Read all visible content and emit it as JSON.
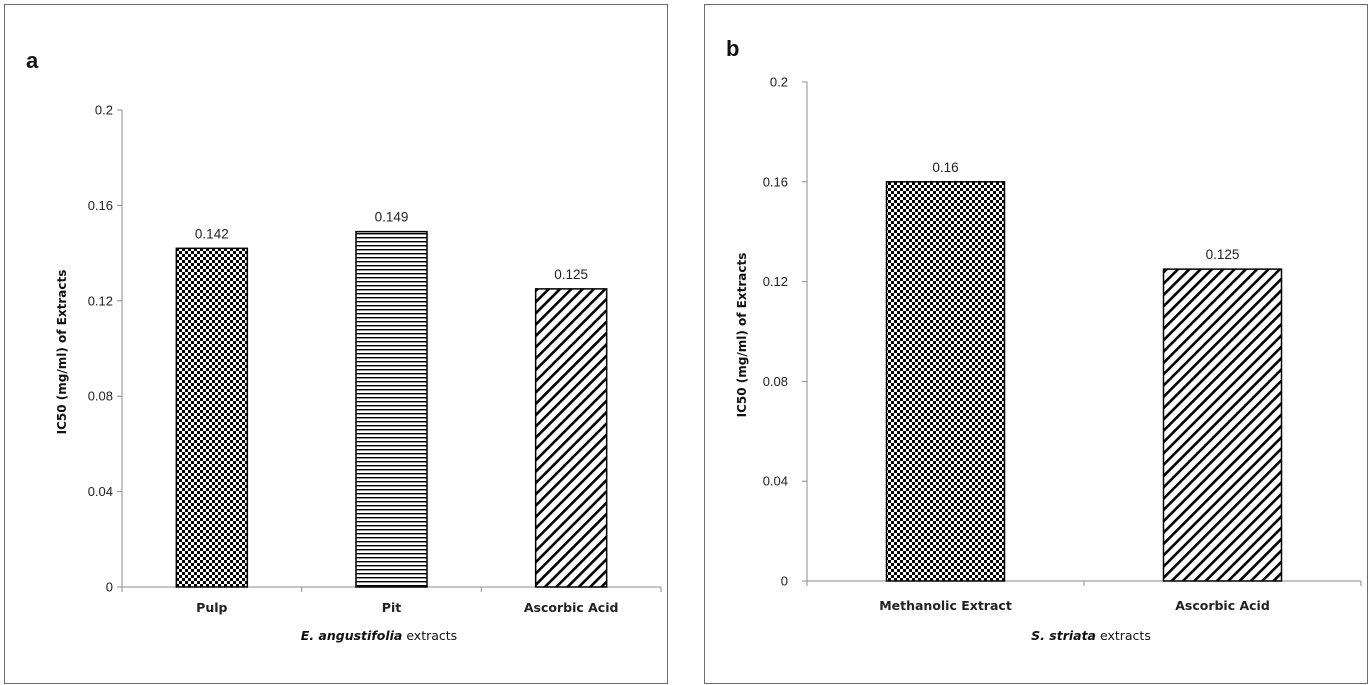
{
  "chart_data": [
    {
      "type": "bar",
      "panel_label": "a",
      "categories": [
        "Pulp",
        "Pit",
        "Ascorbic Acid"
      ],
      "values": [
        0.142,
        0.149,
        0.125
      ],
      "data_labels": [
        "0.142",
        "0.149",
        "0.125"
      ],
      "patterns": [
        "checker",
        "horizontal-lines",
        "diagonal-lines"
      ],
      "xlabel_italic": "E. angustifolia",
      "xlabel_rest": " extracts",
      "ylabel": "IC50 (mg/ml) of Extracts",
      "ylim": [
        0,
        0.2
      ],
      "yticks": [
        "0",
        "0.04",
        "0.08",
        "0.12",
        "0.16",
        "0.2"
      ],
      "grid": false
    },
    {
      "type": "bar",
      "panel_label": "b",
      "categories": [
        "Methanolic Extract",
        "Ascorbic Acid"
      ],
      "values": [
        0.16,
        0.125
      ],
      "data_labels": [
        "0.16",
        "0.125"
      ],
      "patterns": [
        "checker",
        "diagonal-lines"
      ],
      "xlabel_italic": "S. striata",
      "xlabel_rest": " extracts",
      "ylabel": "IC50 (mg/ml) of Extracts",
      "ylim": [
        0,
        0.2
      ],
      "yticks": [
        "0",
        "0.04",
        "0.08",
        "0.12",
        "0.16",
        "0.2"
      ],
      "grid": false
    }
  ]
}
